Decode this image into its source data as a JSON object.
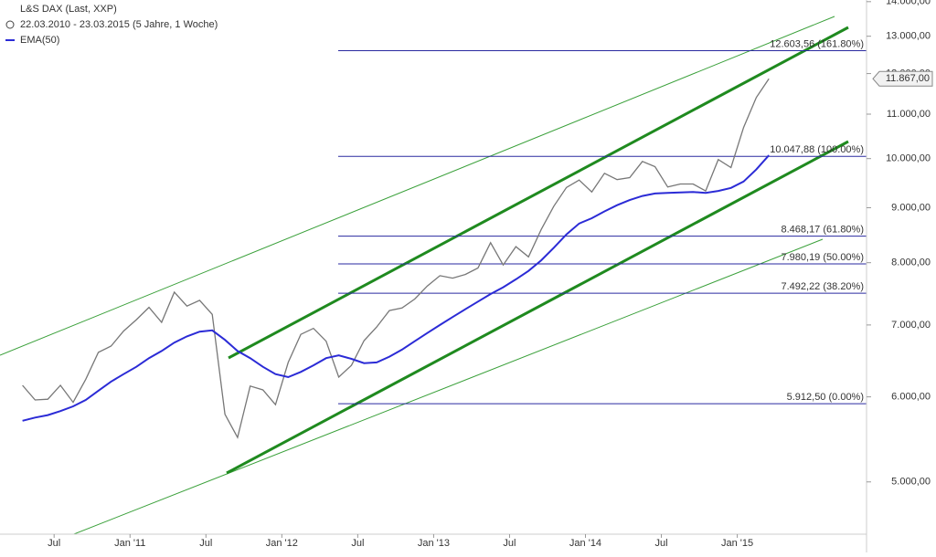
{
  "chart_data": {
    "type": "line",
    "title": "L&S DAX (Last, XXP)",
    "subtitle": "22.03.2010 - 23.03.2015 (5 Jahre, 1 Woche)",
    "y_scale": "log",
    "x": [
      "2010-04",
      "2010-05",
      "2010-06",
      "2010-07",
      "2010-08",
      "2010-09",
      "2010-10",
      "2010-11",
      "2010-12",
      "2011-01",
      "2011-02",
      "2011-03",
      "2011-04",
      "2011-05",
      "2011-06",
      "2011-07",
      "2011-08",
      "2011-09",
      "2011-10",
      "2011-11",
      "2011-12",
      "2012-01",
      "2012-02",
      "2012-03",
      "2012-04",
      "2012-05",
      "2012-06",
      "2012-07",
      "2012-08",
      "2012-09",
      "2012-10",
      "2012-11",
      "2012-12",
      "2013-01",
      "2013-02",
      "2013-03",
      "2013-04",
      "2013-05",
      "2013-06",
      "2013-07",
      "2013-08",
      "2013-09",
      "2013-10",
      "2013-11",
      "2013-12",
      "2014-01",
      "2014-02",
      "2014-03",
      "2014-04",
      "2014-05",
      "2014-06",
      "2014-07",
      "2014-08",
      "2014-09",
      "2014-10",
      "2014-11",
      "2014-12",
      "2015-01",
      "2015-02",
      "2015-03"
    ],
    "series": [
      {
        "name": "L&S DAX",
        "color": "#777777",
        "values": [
          6150,
          5960,
          5970,
          6150,
          5930,
          6230,
          6600,
          6690,
          6910,
          7080,
          7270,
          7040,
          7510,
          7290,
          7380,
          7160,
          5780,
          5500,
          6140,
          6090,
          5900,
          6460,
          6860,
          6950,
          6760,
          6260,
          6420,
          6770,
          6970,
          7220,
          7260,
          7400,
          7610,
          7780,
          7740,
          7800,
          7910,
          8350,
          7960,
          8280,
          8100,
          8590,
          9030,
          9400,
          9550,
          9310,
          9690,
          9560,
          9600,
          9940,
          9830,
          9410,
          9470,
          9470,
          9330,
          9980,
          9810,
          10690,
          11400,
          11867
        ]
      },
      {
        "name": "EMA(50)",
        "color": "#2b2bd6",
        "values": [
          5700,
          5740,
          5770,
          5820,
          5880,
          5960,
          6080,
          6200,
          6300,
          6400,
          6520,
          6620,
          6740,
          6830,
          6900,
          6920,
          6780,
          6620,
          6520,
          6400,
          6300,
          6260,
          6330,
          6420,
          6520,
          6560,
          6510,
          6450,
          6460,
          6540,
          6640,
          6760,
          6880,
          7000,
          7120,
          7240,
          7360,
          7480,
          7590,
          7720,
          7860,
          8040,
          8260,
          8500,
          8700,
          8800,
          8930,
          9050,
          9150,
          9230,
          9280,
          9290,
          9300,
          9310,
          9290,
          9330,
          9390,
          9520,
          9770,
          10070
        ]
      }
    ],
    "xlim": [
      "2010-02",
      "2015-11"
    ],
    "xticks": [
      {
        "value": "2010-07",
        "label": "Jul"
      },
      {
        "value": "2011-01",
        "label": "Jan '11"
      },
      {
        "value": "2011-07",
        "label": "Jul"
      },
      {
        "value": "2012-01",
        "label": "Jan '12"
      },
      {
        "value": "2012-07",
        "label": "Jul"
      },
      {
        "value": "2013-01",
        "label": "Jan '13"
      },
      {
        "value": "2013-07",
        "label": "Jul"
      },
      {
        "value": "2014-01",
        "label": "Jan '14"
      },
      {
        "value": "2014-07",
        "label": "Jul"
      },
      {
        "value": "2015-01",
        "label": "Jan '15"
      }
    ],
    "ylim": [
      4470,
      14050
    ],
    "yticks": [
      {
        "value": 5000,
        "label": "5.000,00"
      },
      {
        "value": 6000,
        "label": "6.000,00"
      },
      {
        "value": 7000,
        "label": "7.000,00"
      },
      {
        "value": 8000,
        "label": "8.000,00"
      },
      {
        "value": 9000,
        "label": "9.000,00"
      },
      {
        "value": 10000,
        "label": "10.000,00"
      },
      {
        "value": 11000,
        "label": "11.000,00"
      },
      {
        "value": 12000,
        "label": "12.000,00"
      },
      {
        "value": 13000,
        "label": "13.000,00"
      },
      {
        "value": 14000,
        "label": "14.000,00"
      }
    ],
    "last_price": {
      "value": 11867,
      "label": "11.867,00"
    },
    "levels": [
      {
        "value": 12603.56,
        "label": "12.603,56 (161.80%)"
      },
      {
        "value": 10047.88,
        "label": "10.047,88 (100.00%)"
      },
      {
        "value": 8468.17,
        "label": "8.468,17 (61.80%)"
      },
      {
        "value": 7980.19,
        "label": "7.980,19 (50.00%)"
      },
      {
        "value": 7492.22,
        "label": "7.492,22 (38.20%)"
      },
      {
        "value": 5912.5,
        "label": "5.912,50 (0.00%)"
      }
    ],
    "levels_color": "#2a2aa0"
  }
}
